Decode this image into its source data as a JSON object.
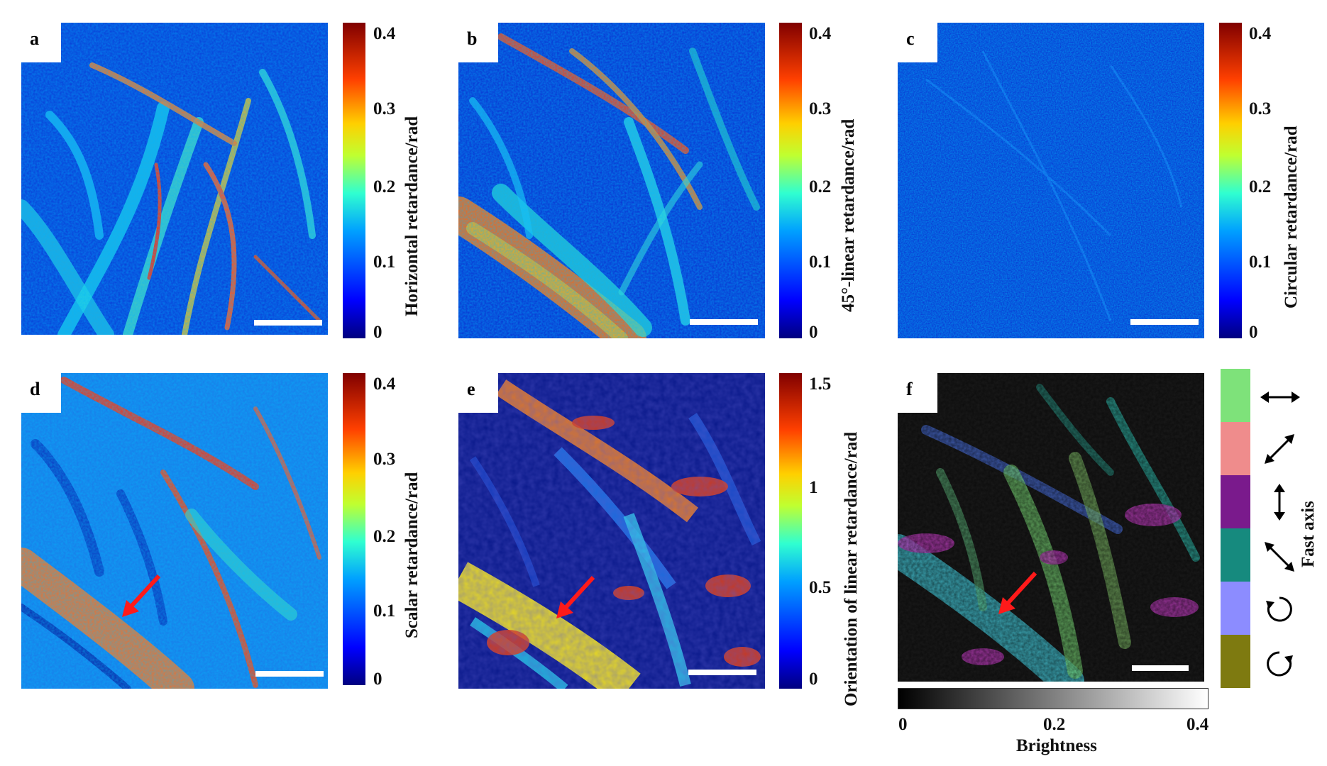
{
  "panels": [
    {
      "label": "a",
      "colorbar_title": "Horizontal retardance/rad",
      "ticks": [
        "0.4",
        "0.3",
        "0.2",
        "0.1",
        "0"
      ],
      "field": "horizontal"
    },
    {
      "label": "b",
      "colorbar_title": "45°-linear retardance/rad",
      "ticks": [
        "0.4",
        "0.3",
        "0.2",
        "0.1",
        "0"
      ],
      "field": "linear45"
    },
    {
      "label": "c",
      "colorbar_title": "Circular retardance/rad",
      "ticks": [
        "0.4",
        "0.3",
        "0.2",
        "0.1",
        "0"
      ],
      "field": "circular"
    },
    {
      "label": "d",
      "colorbar_title": "Scalar retardance/rad",
      "ticks": [
        "0.4",
        "0.3",
        "0.2",
        "0.1",
        "0"
      ],
      "field": "scalar"
    },
    {
      "label": "e",
      "colorbar_title": "Orientation of linear retardance/rad",
      "ticks": [
        "1.5",
        "1",
        "0.5",
        "0"
      ],
      "field": "orientation"
    },
    {
      "label": "f",
      "colorbar_title": "Fast axis",
      "field": "fastaxis"
    }
  ],
  "brightness_bar": {
    "title": "Brightness",
    "ticks": [
      "0",
      "0.2",
      "0.4"
    ]
  },
  "fast_axis_legend": [
    {
      "color": "#7ee27a",
      "icon": "horizontal-double-arrow-icon"
    },
    {
      "color": "#ef8c8c",
      "icon": "diagonal-45-double-arrow-icon"
    },
    {
      "color": "#7a1a8c",
      "icon": "vertical-double-arrow-icon"
    },
    {
      "color": "#168a7e",
      "icon": "diagonal-135-double-arrow-icon"
    },
    {
      "color": "#8c8cff",
      "icon": "clockwise-circle-arrow-icon"
    },
    {
      "color": "#7e7a10",
      "icon": "counterclockwise-circle-arrow-icon"
    }
  ],
  "colors": {
    "jet_low": "#00007f",
    "jet_high": "#800000",
    "scale_bar": "#ffffff",
    "arrow": "#ff1a1a"
  }
}
